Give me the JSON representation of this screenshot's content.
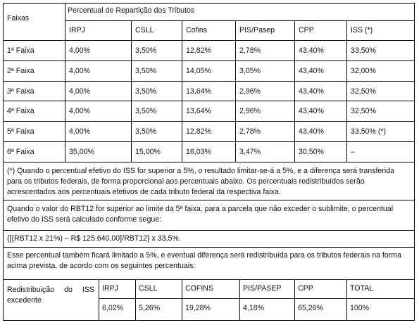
{
  "header": {
    "faixas": "Faixas",
    "percentual": "Percentual de Repartição dos Tributos",
    "columns": [
      "IRPJ",
      "CSLL",
      "Cofins",
      "PIS/Pasep",
      "CPP",
      "ISS (*)"
    ]
  },
  "rows": [
    {
      "faixa": "1ª Faixa",
      "values": [
        "4,00%",
        "3,50%",
        "12,82%",
        "2,78%",
        "43,40%",
        "33,50%"
      ]
    },
    {
      "faixa": "2ª Faixa",
      "values": [
        "4,00%",
        "3,50%",
        "14,05%",
        "3,05%",
        "43,40%",
        "32,00%"
      ]
    },
    {
      "faixa": "3ª Faixa",
      "values": [
        "4,00%",
        "3,50%",
        "13,64%",
        "2,96%",
        "43,40%",
        "32,50%"
      ]
    },
    {
      "faixa": "4ª Faixa",
      "values": [
        "4,00%",
        "3,50%",
        "13,64%",
        "2,96%",
        "43,40%",
        "32,50%"
      ]
    },
    {
      "faixa": "5ª Faixa",
      "values": [
        "4,00%",
        "3,50%",
        "12,82%",
        "2,78%",
        "43,40%",
        "33,50% (*)"
      ]
    },
    {
      "faixa": "6ª Faixa",
      "values": [
        "35,00%",
        "15,00%",
        "16,03%",
        "3,47%",
        "30,50%",
        "–"
      ]
    }
  ],
  "notes": {
    "note1": "(*) Quando o percentual efetivo do ISS for superior a 5%, o resultado limitar-se-á a 5%, e a diferença será transferida para os tributos federais, de forma proporcional aos percentuais abaixo. Os percentuais redistribuídos serão acrescentados aos percentuais efetivos de cada tributo federal da respectiva faixa.",
    "note2": "Quando o valor do RBT12 for superior ao limite da 5ª faixa, para a parcela que não exceder o sublimite, o percentual efetivo do ISS será calculado conforme segue:",
    "formula": "{[(RBT12 x 21%) – R$ 125.640,00]/RBT12} x 33,5%.",
    "note3": "Esse percentual também ficará limitado a 5%, e eventual diferença será redistribuída para os tributos federais na forma acima prevista, de acordo com os seguintes percentuais:"
  },
  "redistribution": {
    "label": "Redistribuição do ISS excedente",
    "columns": [
      "IRPJ",
      "CSLL",
      "COFINS",
      "PIS/PASEP",
      "CPP",
      "TOTAL"
    ],
    "values": [
      "6,02%",
      "5,26%",
      "19,28%",
      "4,18%",
      "65,26%",
      "100%"
    ]
  }
}
